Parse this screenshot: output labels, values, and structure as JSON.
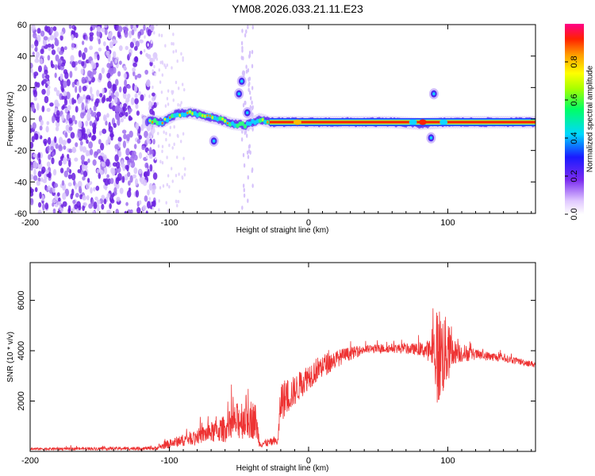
{
  "title": "YM08.2026.033.21.11.E23",
  "chart_data": [
    {
      "type": "heatmap",
      "name": "spectrogram",
      "xlabel": "Height of straight line (km)",
      "ylabel": "Frequency (Hz)",
      "xlim": [
        -200,
        163
      ],
      "ylim": [
        -60,
        60
      ],
      "xticks": [
        -200,
        -100,
        0,
        100
      ],
      "yticks": [
        -60,
        -40,
        -20,
        0,
        20,
        40,
        60
      ],
      "ridge": [
        {
          "x": -115,
          "y": -1
        },
        {
          "x": -105,
          "y": -2
        },
        {
          "x": -95,
          "y": 3
        },
        {
          "x": -85,
          "y": 4
        },
        {
          "x": -75,
          "y": 2
        },
        {
          "x": -65,
          "y": 0
        },
        {
          "x": -55,
          "y": -3
        },
        {
          "x": -45,
          "y": -4
        },
        {
          "x": -35,
          "y": 0
        },
        {
          "x": -28,
          "y": -2
        },
        {
          "x": 0,
          "y": -2
        },
        {
          "x": 60,
          "y": -2
        },
        {
          "x": 80,
          "y": -3
        },
        {
          "x": 100,
          "y": -2
        },
        {
          "x": 163,
          "y": -2
        }
      ],
      "strong_segment_x": [
        -28,
        163
      ],
      "secondary_blobs": [
        {
          "x": -68,
          "y": -14
        },
        {
          "x": -50,
          "y": 16
        },
        {
          "x": -48,
          "y": 24
        },
        {
          "x": -44,
          "y": 4
        },
        {
          "x": 88,
          "y": -12
        },
        {
          "x": 90,
          "y": 16
        }
      ],
      "noise_region_x": [
        -200,
        -115
      ],
      "colorbar": {
        "label": "Normalized spectral amplitude",
        "range": [
          0,
          1
        ],
        "ticks": [
          "0.0",
          "0.2",
          "0.4",
          "0.6",
          "0.8"
        ],
        "tick_values": [
          0,
          0.2,
          0.4,
          0.6,
          0.8
        ]
      }
    },
    {
      "type": "line",
      "name": "snr",
      "xlabel": "Height of straight line (km)",
      "ylabel": "SNR (10 * v/v)",
      "xlim": [
        -200,
        163
      ],
      "ylim": [
        0,
        7500
      ],
      "xticks": [
        -200,
        -100,
        0,
        100
      ],
      "yticks": [
        2000,
        4000,
        6000
      ],
      "color": "#ee3333",
      "envelope": [
        {
          "x": -200,
          "base": 100,
          "amp": 80
        },
        {
          "x": -110,
          "base": 120,
          "amp": 120
        },
        {
          "x": -100,
          "base": 300,
          "amp": 300
        },
        {
          "x": -80,
          "base": 600,
          "amp": 500
        },
        {
          "x": -60,
          "base": 900,
          "amp": 900
        },
        {
          "x": -45,
          "base": 1400,
          "amp": 1500
        },
        {
          "x": -38,
          "base": 1200,
          "amp": 1200
        },
        {
          "x": -35,
          "base": 300,
          "amp": 250
        },
        {
          "x": -22,
          "base": 400,
          "amp": 300
        },
        {
          "x": -20,
          "base": 2000,
          "amp": 1400
        },
        {
          "x": -10,
          "base": 2400,
          "amp": 1000
        },
        {
          "x": 0,
          "base": 3000,
          "amp": 900
        },
        {
          "x": 10,
          "base": 3400,
          "amp": 800
        },
        {
          "x": 25,
          "base": 3800,
          "amp": 500
        },
        {
          "x": 40,
          "base": 4050,
          "amp": 300
        },
        {
          "x": 60,
          "base": 4100,
          "amp": 300
        },
        {
          "x": 80,
          "base": 4050,
          "amp": 400
        },
        {
          "x": 88,
          "base": 4000,
          "amp": 800
        },
        {
          "x": 93,
          "base": 3800,
          "amp": 3500
        },
        {
          "x": 97,
          "base": 3900,
          "amp": 2800
        },
        {
          "x": 105,
          "base": 3950,
          "amp": 800
        },
        {
          "x": 120,
          "base": 3850,
          "amp": 350
        },
        {
          "x": 140,
          "base": 3700,
          "amp": 250
        },
        {
          "x": 163,
          "base": 3450,
          "amp": 200
        }
      ]
    }
  ]
}
